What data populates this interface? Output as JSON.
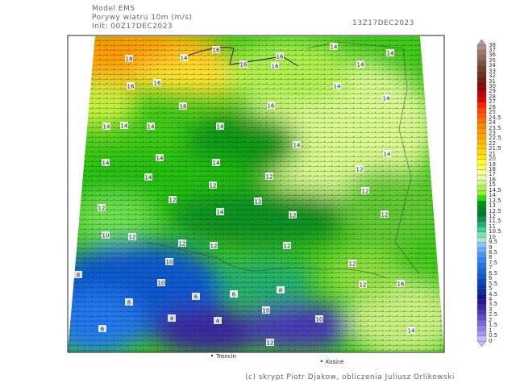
{
  "header": {
    "model": "Model EMS",
    "variable": "Porywy wiatru 10m (m/s)",
    "init": "Init: 00Z17DEC2023",
    "valid_time": "13Z17DEC2023"
  },
  "map": {
    "places": [
      "Trencin",
      "Kosice"
    ],
    "contour_labels": [
      "14",
      "14",
      "14",
      "16",
      "14",
      "16",
      "16",
      "16",
      "18",
      "14",
      "14",
      "16",
      "16",
      "16",
      "16",
      "14",
      "14",
      "14",
      "14",
      "14",
      "14",
      "14",
      "14",
      "14",
      "14",
      "12",
      "12",
      "12",
      "12",
      "12",
      "12",
      "14",
      "12",
      "12",
      "12",
      "10",
      "12",
      "12",
      "12",
      "12",
      "10",
      "10",
      "8",
      "8",
      "6",
      "6",
      "4",
      "4",
      "10",
      "8",
      "12",
      "12",
      "10",
      "6",
      "12",
      "16",
      "14"
    ]
  },
  "legend": {
    "labels": [
      "0",
      "0.5",
      "1",
      "1.5",
      "2",
      "2.5",
      "3",
      "3.5",
      "4",
      "4.5",
      "5",
      "5.5",
      "6",
      "6.5",
      "7",
      "7.5",
      "8",
      "8.5",
      "9",
      "9.5",
      "10",
      "10.5",
      "11",
      "11.5",
      "12",
      "12.5",
      "13",
      "13.5",
      "14",
      "14.5",
      "15",
      "16",
      "17",
      "18",
      "19",
      "20",
      "21",
      "21.5",
      "22",
      "22.5",
      "23",
      "23.5",
      "24",
      "24.5",
      "25",
      "26",
      "27",
      "28",
      "29",
      "30",
      "31",
      "32",
      "33",
      "34",
      "35",
      "36",
      "37",
      "38"
    ],
    "colors": [
      "#c9b9ff",
      "#a896f0",
      "#9080e8",
      "#7a6ad8",
      "#6050c8",
      "#4a38b8",
      "#3a28a0",
      "#2a1890",
      "#101890",
      "#0a28a0",
      "#0838b0",
      "#0848c0",
      "#1058d0",
      "#1868e0",
      "#2078f0",
      "#3088f8",
      "#4898f0",
      "#68aaf8",
      "#90c0ff",
      "#a8e8d0",
      "#70e8b0",
      "#40d090",
      "#20b070",
      "#109050",
      "#007830",
      "#008820",
      "#009818",
      "#20e010",
      "#90f030",
      "#b0f050",
      "#d0f890",
      "#e8ffa0",
      "#ffff90",
      "#ffff50",
      "#ffff30",
      "#ffe800",
      "#ffd800",
      "#ffc800",
      "#ffb800",
      "#ffa800",
      "#ff9800",
      "#ff8800",
      "#ff7000",
      "#ff5800",
      "#ff4000",
      "#ff2000",
      "#e00000",
      "#c00000",
      "#a00000",
      "#801000",
      "#702010",
      "#6a3020",
      "#704030",
      "#805040",
      "#906858",
      "#a07868",
      "#b09080"
    ],
    "top_arrow_color": "#a0a0a0",
    "bottom_arrow_color": "#c9b9ff"
  },
  "footer": {
    "credit": "(c) skrypt Piotr Djakow, obliczenia Juliusz Orlikowski"
  }
}
